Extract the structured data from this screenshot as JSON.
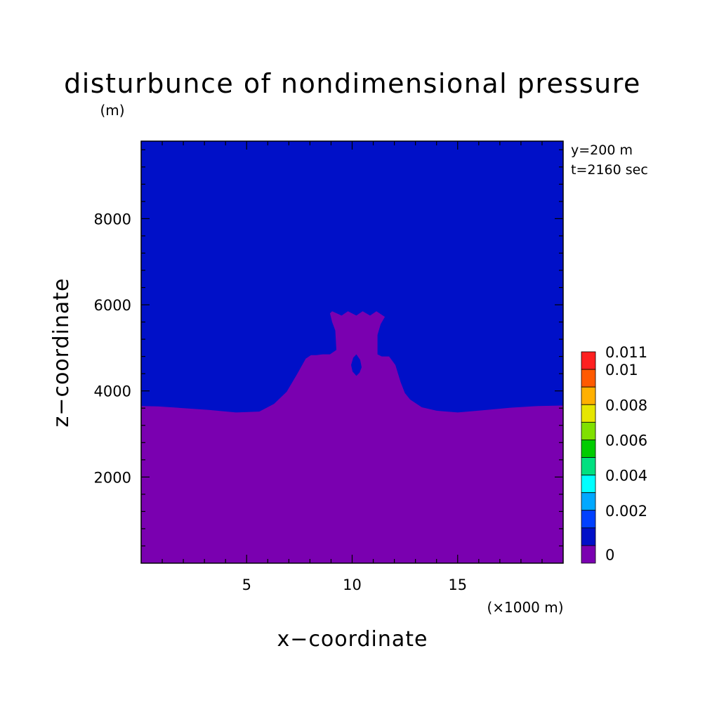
{
  "chart_data": {
    "type": "heatmap",
    "title": "disturbunce of nondimensional pressure",
    "y_unit": "(m)",
    "xlabel": "x−coordinate",
    "ylabel": "z−coordinate",
    "x_unit": "(×1000 m)",
    "xlim": [
      0,
      20
    ],
    "ylim": [
      0,
      9800
    ],
    "x_ticks": [
      5,
      10,
      15
    ],
    "x_tick_labels": [
      "5",
      "10",
      "15"
    ],
    "y_ticks": [
      2000,
      4000,
      6000,
      8000
    ],
    "y_tick_labels": [
      "2000",
      "4000",
      "6000",
      "8000"
    ],
    "x_minor_step": 1,
    "y_minor_step": 400,
    "annotations": [
      "y=200 m",
      "t=2160 sec"
    ],
    "colorbar": {
      "levels": [
        0.011,
        0.01,
        0.009,
        0.008,
        0.007,
        0.006,
        0.005,
        0.004,
        0.003,
        0.002,
        0.001,
        0,
        -0.001
      ],
      "colors": [
        "#ff2020",
        "#ff5a00",
        "#ffb000",
        "#e6e600",
        "#80e000",
        "#00cc00",
        "#00e080",
        "#00ffff",
        "#00a8ff",
        "#0040ff",
        "#0010c8",
        "#7a00b0"
      ],
      "labels": [
        {
          "text": "0.011",
          "value": 0.011
        },
        {
          "text": "0.01",
          "value": 0.01
        },
        {
          "text": "0.008",
          "value": 0.008
        },
        {
          "text": "0.006",
          "value": 0.006
        },
        {
          "text": "0.004",
          "value": 0.004
        },
        {
          "text": "0.002",
          "value": 0.002
        },
        {
          "text": "0",
          "value": 0
        }
      ]
    },
    "regions": [
      {
        "name": "background",
        "color": "#0010c8",
        "level_range": [
          0,
          0.001
        ]
      },
      {
        "name": "negative-region",
        "color": "#7a00b0",
        "level_range": [
          -0.001,
          0
        ],
        "boundary_x": [
          0,
          0.8,
          2,
          3.2,
          4.5,
          5.6,
          6.3,
          6.9,
          7.4,
          7.8,
          8.05,
          8.3,
          8.6,
          8.95,
          9.25,
          9.2,
          9.05,
          8.95,
          9.05,
          9.5,
          9.8,
          10.2,
          10.5,
          10.85,
          11.15,
          11.55,
          11.35,
          11.2,
          11.2,
          11.4,
          11.75,
          12.05,
          12.3,
          12.5,
          12.75,
          13.3,
          14,
          15,
          16.2,
          17.5,
          18.8,
          20,
          20,
          0
        ],
        "boundary_z": [
          3650,
          3640,
          3600,
          3560,
          3500,
          3520,
          3700,
          3980,
          4400,
          4750,
          4830,
          4830,
          4850,
          4850,
          4950,
          5400,
          5600,
          5800,
          5850,
          5750,
          5850,
          5750,
          5850,
          5750,
          5850,
          5720,
          5550,
          5300,
          4850,
          4800,
          4800,
          4600,
          4200,
          3950,
          3800,
          3620,
          3540,
          3500,
          3550,
          3610,
          3650,
          3660,
          0,
          0
        ]
      },
      {
        "name": "positive-hole",
        "color": "#0010c8",
        "level_range": [
          0,
          0.001
        ],
        "boundary_x": [
          10.2,
          10.38,
          10.45,
          10.35,
          10.2,
          10.02,
          9.95,
          10.05
        ],
        "boundary_z": [
          4850,
          4720,
          4550,
          4420,
          4350,
          4450,
          4600,
          4770
        ]
      }
    ]
  }
}
